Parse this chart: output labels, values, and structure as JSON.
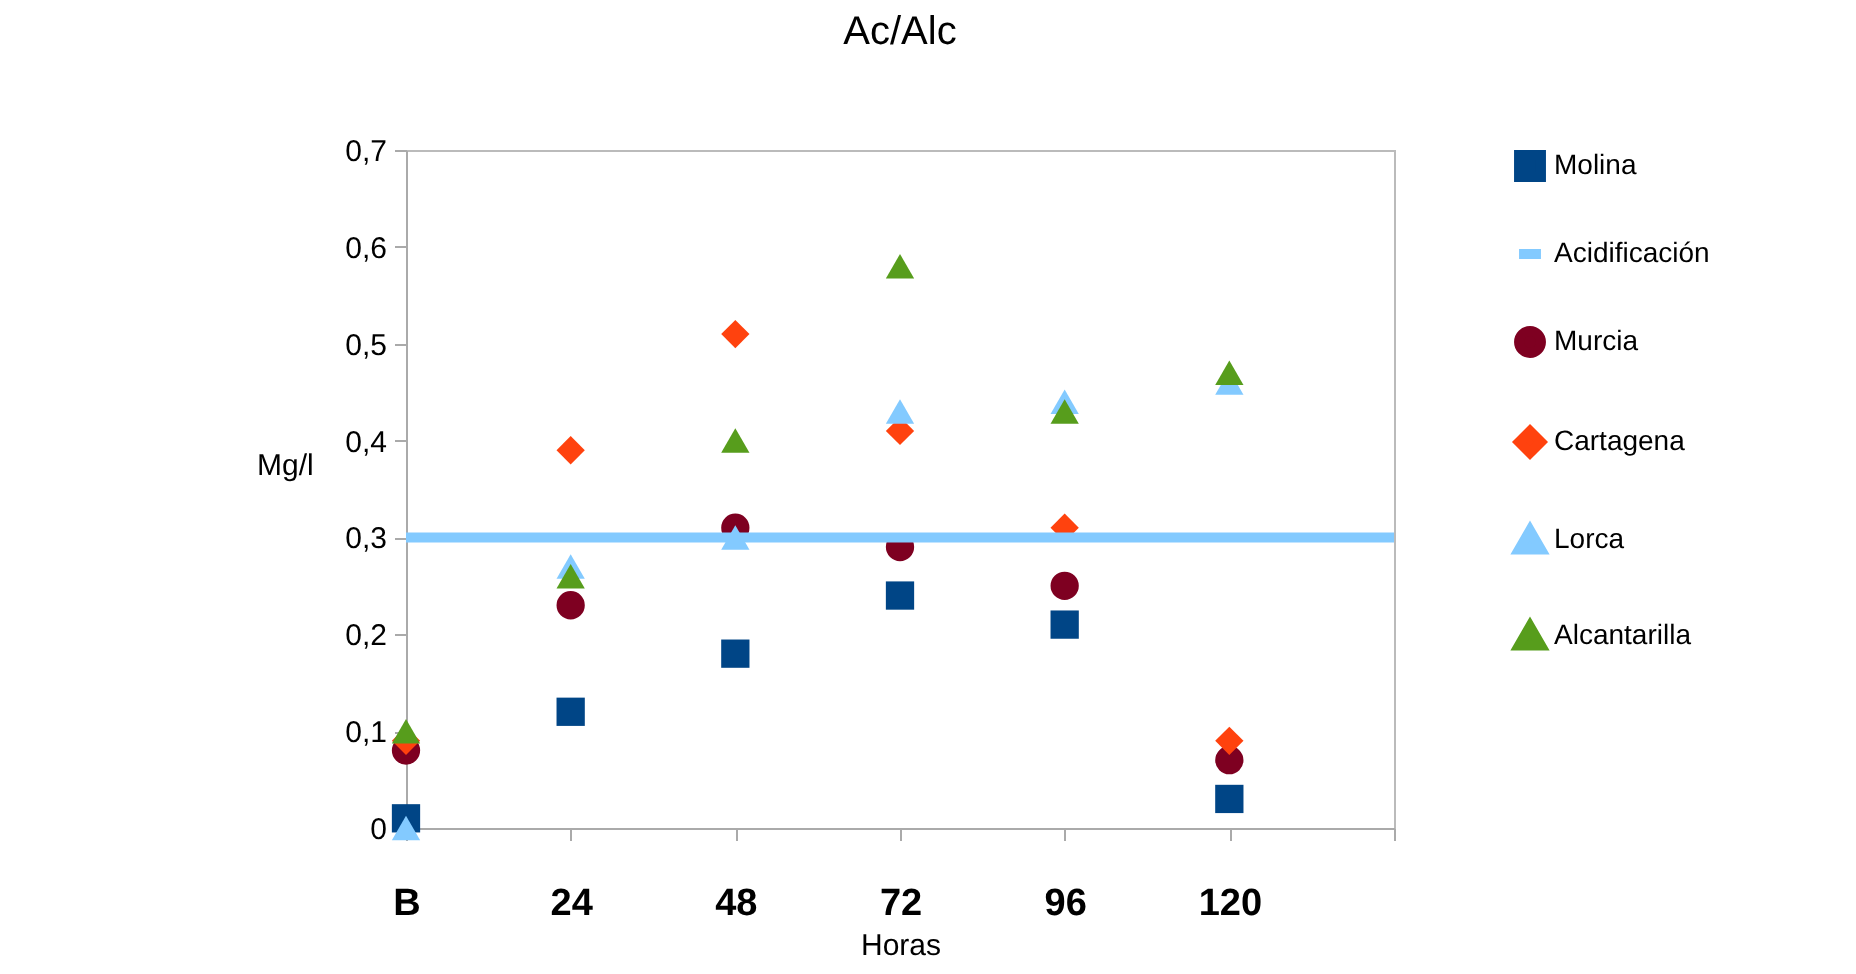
{
  "chart_data": {
    "type": "scatter",
    "title": "Ac/Alc",
    "xlabel": "Horas",
    "ylabel": "Mg/l",
    "categories": [
      "B",
      "24",
      "48",
      "72",
      "96",
      "120",
      null
    ],
    "series": [
      {
        "name": "Molina",
        "color": "#004586",
        "marker": "square",
        "values": [
          0.01,
          0.12,
          0.18,
          0.24,
          0.21,
          0.03,
          null
        ]
      },
      {
        "name": "Murcia",
        "color": "#7e0021",
        "marker": "circle",
        "values": [
          0.08,
          0.23,
          0.31,
          0.29,
          0.25,
          0.07,
          null
        ]
      },
      {
        "name": "Cartagena",
        "color": "#ff420e",
        "marker": "diamond",
        "values": [
          0.09,
          0.39,
          0.51,
          0.41,
          0.31,
          0.09,
          null
        ]
      },
      {
        "name": "Lorca",
        "color": "#83caff",
        "marker": "triangle",
        "values": [
          0.0,
          0.27,
          0.3,
          0.43,
          0.44,
          0.46,
          null
        ]
      },
      {
        "name": "Alcantarilla",
        "color": "#579d1c",
        "marker": "triangle",
        "values": [
          0.1,
          0.26,
          0.4,
          0.58,
          0.43,
          0.47,
          null
        ]
      }
    ],
    "ref_lines": [
      {
        "axis": "y",
        "value": 0.3,
        "label": "Acidificación",
        "color": "#83caff"
      }
    ],
    "ylim": [
      0,
      0.7
    ],
    "yticks": [
      {
        "value": 0,
        "label": "0"
      },
      {
        "value": 0.1,
        "label": "0,1"
      },
      {
        "value": 0.2,
        "label": "0,2"
      },
      {
        "value": 0.3,
        "label": "0,3"
      },
      {
        "value": 0.4,
        "label": "0,4"
      },
      {
        "value": 0.5,
        "label": "0,5"
      },
      {
        "value": 0.6,
        "label": "0,6"
      },
      {
        "value": 0.7,
        "label": "0,7"
      }
    ],
    "grid": false,
    "legend": "right"
  }
}
